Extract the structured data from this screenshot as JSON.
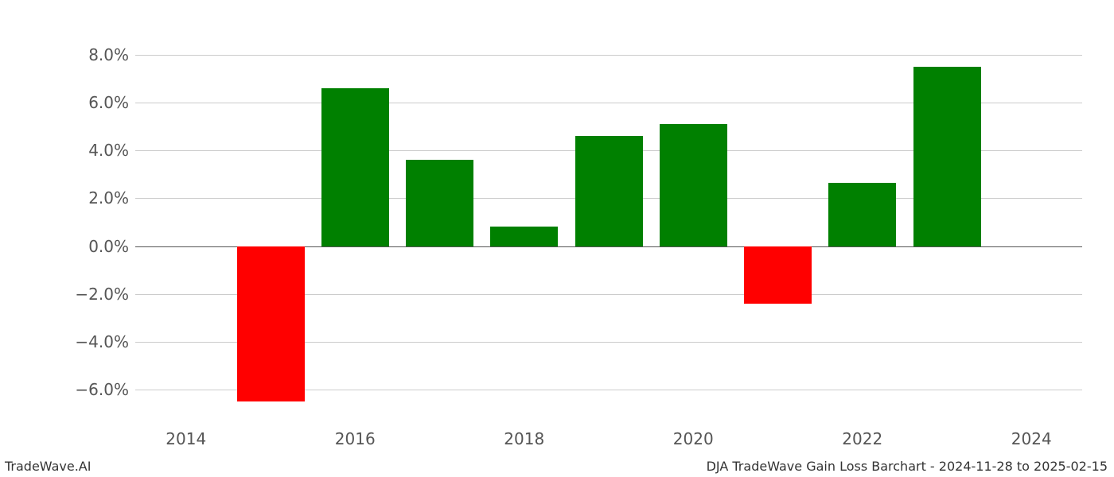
{
  "chart": {
    "type": "bar",
    "years": [
      2014,
      2015,
      2016,
      2017,
      2018,
      2019,
      2020,
      2021,
      2022,
      2023,
      2024
    ],
    "values": [
      0.0,
      -6.5,
      6.6,
      3.6,
      0.8,
      4.6,
      5.1,
      -2.4,
      2.65,
      7.5,
      0.0
    ],
    "bar_colors": [
      "#008000",
      "#ff0000",
      "#008000",
      "#008000",
      "#008000",
      "#008000",
      "#008000",
      "#ff0000",
      "#008000",
      "#008000",
      "#008000"
    ],
    "positive_color": "#008000",
    "negative_color": "#ff0000",
    "background_color": "#ffffff",
    "grid_color": "#cccccc",
    "zero_line_color": "#555555",
    "tick_label_color": "#555555",
    "ylim": [
      -7.5,
      8.8
    ],
    "yticks": [
      -6,
      -4,
      -2,
      0,
      2,
      4,
      6,
      8
    ],
    "ytick_labels": [
      "−6.0%",
      "−4.0%",
      "−2.0%",
      "0.0%",
      "2.0%",
      "4.0%",
      "6.0%",
      "8.0%"
    ],
    "xticks": [
      2014,
      2016,
      2018,
      2020,
      2022,
      2024
    ],
    "xtick_labels": [
      "2014",
      "2016",
      "2018",
      "2020",
      "2022",
      "2024"
    ],
    "xlim": [
      2013.4,
      2024.6
    ],
    "bar_width": 0.8,
    "tick_fontsize": 20,
    "footer_fontsize": 16
  },
  "footer": {
    "left": "TradeWave.AI",
    "right": "DJA TradeWave Gain Loss Barchart - 2024-11-28 to 2025-02-15"
  }
}
